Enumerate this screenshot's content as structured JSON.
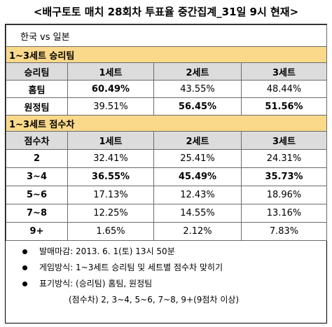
{
  "title": "<배구토토 매치 28회차 투표율 중간집계_31일 9시 현재>",
  "match": "한국 vs 일본",
  "section1": {
    "heading": "1~3세트 승리팀",
    "columns": [
      "승리팀",
      "1세트",
      "2세트",
      "3세트"
    ],
    "rows": [
      {
        "label": "홈팀",
        "cells": [
          "60.49%",
          "43.55%",
          "48.44%"
        ]
      },
      {
        "label": "원정팀",
        "cells": [
          "39.51%",
          "56.45%",
          "51.56%"
        ]
      }
    ]
  },
  "section2": {
    "heading": "1~3세트 점수차",
    "columns": [
      "점수차",
      "1세트",
      "2세트",
      "3세트"
    ],
    "rows": [
      {
        "label": "2",
        "cells": [
          "32.41%",
          "25.41%",
          "24.31%"
        ]
      },
      {
        "label": "3~4",
        "cells": [
          "36.55%",
          "45.49%",
          "35.73%"
        ]
      },
      {
        "label": "5~6",
        "cells": [
          "17.13%",
          "12.43%",
          "18.96%"
        ]
      },
      {
        "label": "7~8",
        "cells": [
          "12.25%",
          "14.55%",
          "13.16%"
        ]
      },
      {
        "label": "9+",
        "cells": [
          "1.65%",
          "2.12%",
          "7.83%"
        ]
      }
    ]
  },
  "notes": [
    "발매마감: 2013. 6. 1(토) 13시 50분",
    "게임방식: 1~3세트 승리팀 및 세트별 점수차 맞히기",
    "표기방식: (승리팀) 홈팀, 원정팀"
  ],
  "note_sub": "(점수차) 2, 3~4, 5~6, 7~8, 9+(9점차 이상)"
}
